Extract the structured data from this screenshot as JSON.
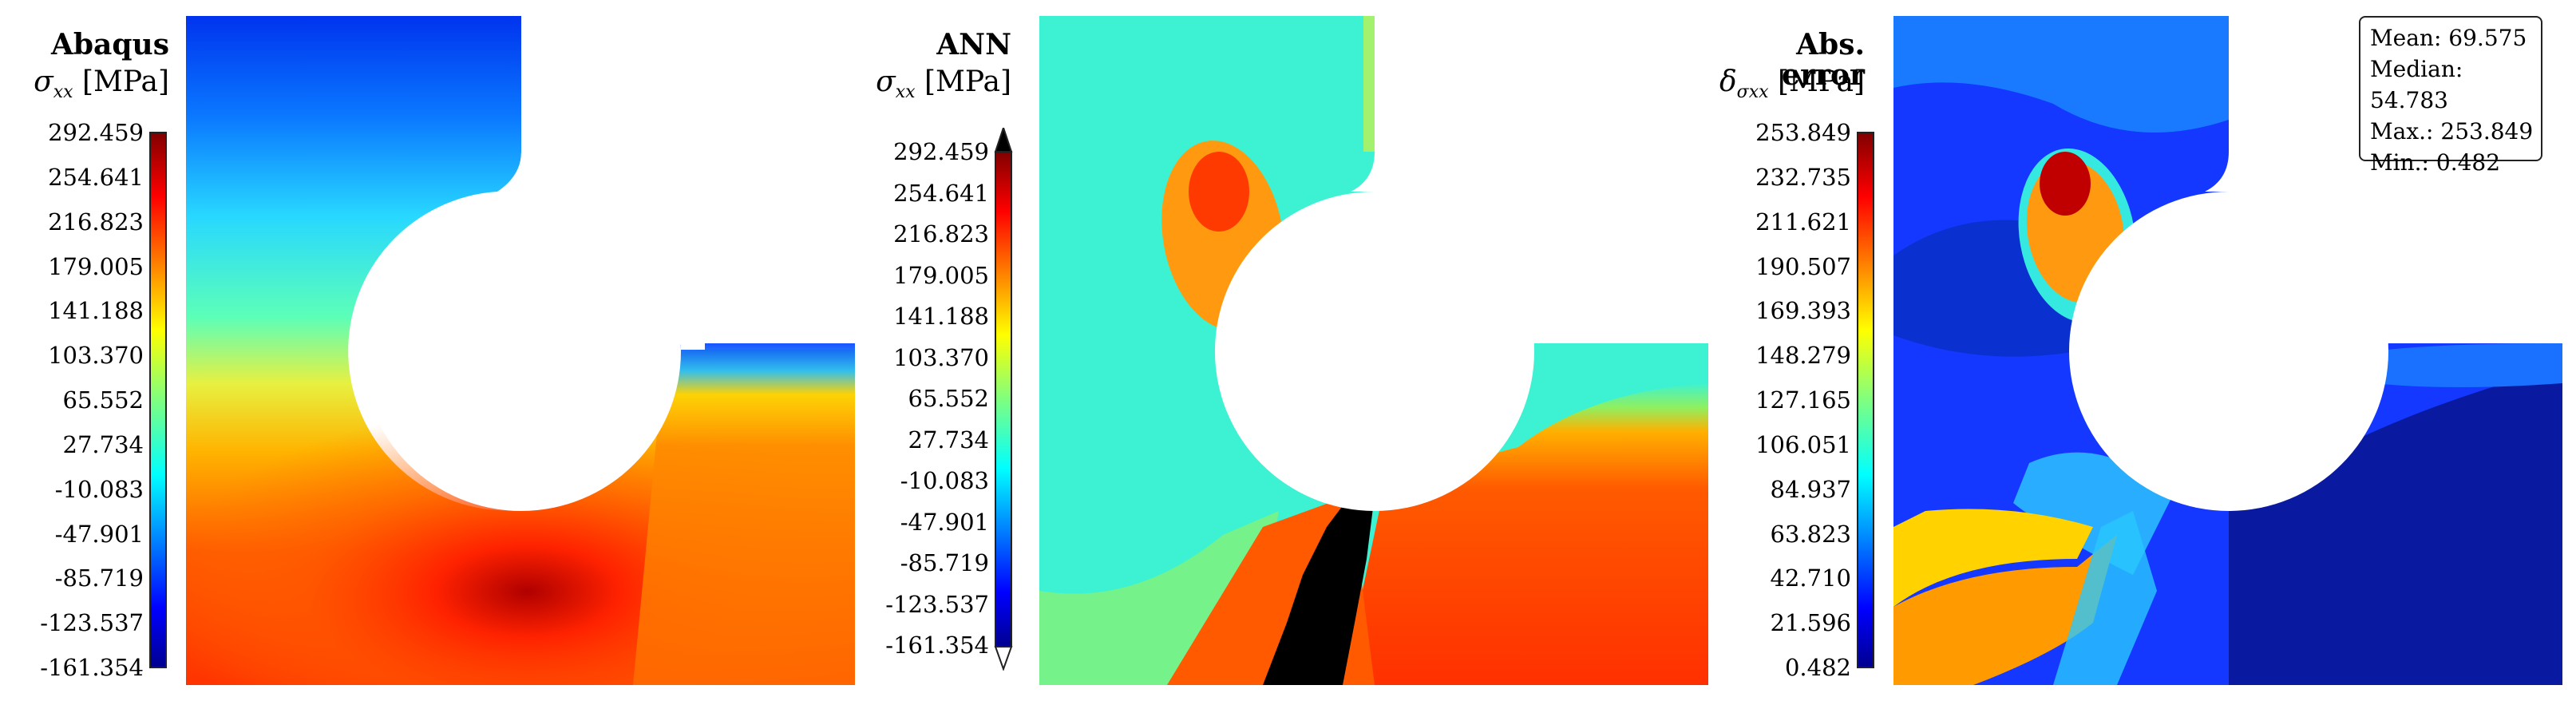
{
  "panels": [
    {
      "id": "abaqus",
      "title": "Abaqus",
      "unit_symbol": "σ",
      "unit_sub": "xx",
      "unit_text": "[MPa]",
      "ticks": [
        "292.459",
        "254.641",
        "216.823",
        "179.005",
        "141.188",
        "103.370",
        "65.552",
        "27.734",
        "-10.083",
        "-47.901",
        "-85.719",
        "-123.537",
        "-161.354"
      ],
      "arrows": false
    },
    {
      "id": "ann",
      "title": "ANN",
      "unit_symbol": "σ",
      "unit_sub": "xx",
      "unit_text": "[MPa]",
      "ticks": [
        "292.459",
        "254.641",
        "216.823",
        "179.005",
        "141.188",
        "103.370",
        "65.552",
        "27.734",
        "-10.083",
        "-47.901",
        "-85.719",
        "-123.537",
        "-161.354"
      ],
      "arrows": true
    },
    {
      "id": "error",
      "title": "Abs. error",
      "unit_symbol": "δ",
      "unit_sub": "σxx",
      "unit_text": "[MPa]",
      "ticks": [
        "253.849",
        "232.735",
        "211.621",
        "190.507",
        "169.393",
        "148.279",
        "127.165",
        "106.051",
        "84.937",
        "63.823",
        "42.710",
        "21.596",
        "0.482"
      ],
      "arrows": false
    }
  ],
  "stats": {
    "mean": "Mean: 69.575",
    "median": "Median: 54.783",
    "max": "Max.: 253.849",
    "min": "Min.: 0.482"
  },
  "colormap": "jet",
  "colors": {
    "dark_blue": "#00008f",
    "blue": "#0050ff",
    "cyan": "#3cf5d4",
    "green_yellow": "#c8ff3c",
    "yellow": "#ffe600",
    "orange": "#ff8a00",
    "red": "#ff2a00",
    "dark_red": "#800000",
    "black": "#000000"
  }
}
